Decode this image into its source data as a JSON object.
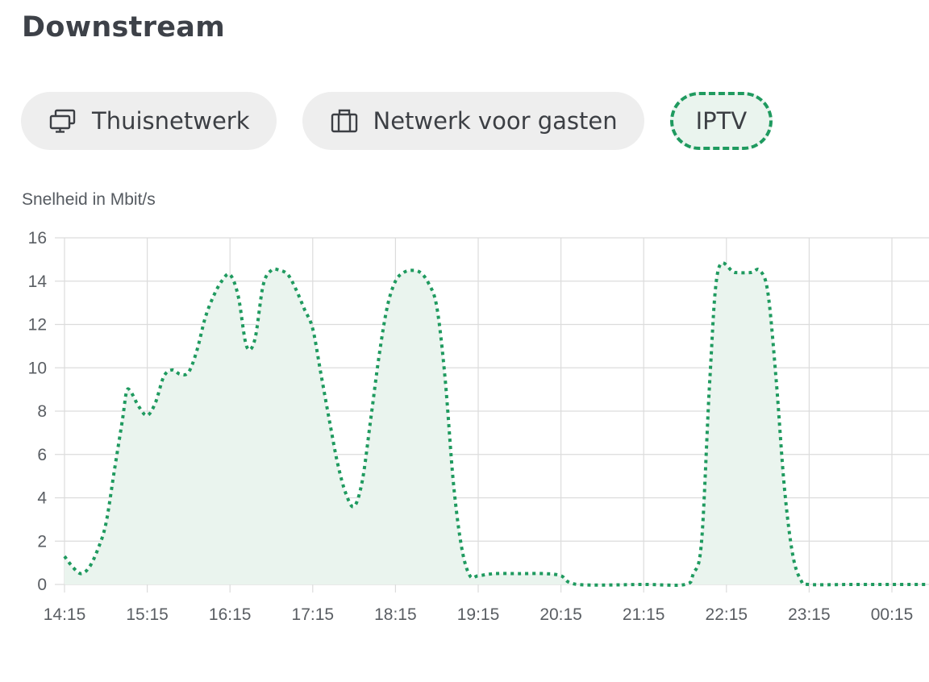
{
  "page": {
    "title": "Downstream"
  },
  "tabs": [
    {
      "label": "Thuisnetwerk",
      "icon": "monitor-icon",
      "active": false
    },
    {
      "label": "Netwerk voor gasten",
      "icon": "suitcase-icon",
      "active": false
    },
    {
      "label": "IPTV",
      "icon": "",
      "active": true
    }
  ],
  "colors": {
    "accent": "#1f9a5f",
    "fill": "#eaf4ee",
    "grid": "#dcdcdc"
  },
  "chart_data": {
    "type": "area",
    "ylabel": "Snelheid in Mbit/s",
    "ylim": [
      0,
      16
    ],
    "yticks": [
      0,
      2,
      4,
      6,
      8,
      10,
      12,
      14,
      16
    ],
    "xticks": [
      "14:15",
      "15:15",
      "16:15",
      "17:15",
      "18:15",
      "19:15",
      "20:15",
      "21:15",
      "22:15",
      "23:15",
      "00:15"
    ],
    "grid": true,
    "line_style": "dotted",
    "x_unit": "minutes after 14:15",
    "series": [
      {
        "points": [
          [
            0,
            1.3
          ],
          [
            6,
            0.8
          ],
          [
            12,
            0.5
          ],
          [
            18,
            0.8
          ],
          [
            24,
            1.6
          ],
          [
            30,
            2.8
          ],
          [
            36,
            5.2
          ],
          [
            42,
            7.6
          ],
          [
            45,
            8.9
          ],
          [
            48,
            8.9
          ],
          [
            54,
            8.2
          ],
          [
            60,
            7.8
          ],
          [
            66,
            8.4
          ],
          [
            72,
            9.6
          ],
          [
            78,
            9.9
          ],
          [
            84,
            9.7
          ],
          [
            90,
            9.8
          ],
          [
            96,
            10.8
          ],
          [
            102,
            12.3
          ],
          [
            108,
            13.3
          ],
          [
            114,
            14.0
          ],
          [
            120,
            14.3
          ],
          [
            126,
            13.3
          ],
          [
            132,
            11.0
          ],
          [
            138,
            11.3
          ],
          [
            144,
            13.8
          ],
          [
            150,
            14.5
          ],
          [
            156,
            14.5
          ],
          [
            162,
            14.3
          ],
          [
            168,
            13.6
          ],
          [
            174,
            12.7
          ],
          [
            180,
            11.8
          ],
          [
            186,
            9.7
          ],
          [
            192,
            7.6
          ],
          [
            198,
            5.6
          ],
          [
            204,
            4.2
          ],
          [
            210,
            3.6
          ],
          [
            216,
            4.8
          ],
          [
            222,
            7.6
          ],
          [
            228,
            10.5
          ],
          [
            234,
            12.8
          ],
          [
            240,
            14.0
          ],
          [
            246,
            14.4
          ],
          [
            252,
            14.5
          ],
          [
            258,
            14.4
          ],
          [
            264,
            13.9
          ],
          [
            270,
            12.8
          ],
          [
            276,
            9.5
          ],
          [
            282,
            4.7
          ],
          [
            288,
            1.7
          ],
          [
            294,
            0.4
          ],
          [
            300,
            0.4
          ],
          [
            312,
            0.5
          ],
          [
            330,
            0.5
          ],
          [
            348,
            0.5
          ],
          [
            360,
            0.4
          ],
          [
            372,
            0.0
          ],
          [
            420,
            0.0
          ],
          [
            450,
            0.0
          ],
          [
            456,
            0.5
          ],
          [
            462,
            2.0
          ],
          [
            468,
            9.5
          ],
          [
            474,
            14.5
          ],
          [
            486,
            14.4
          ],
          [
            498,
            14.4
          ],
          [
            504,
            14.5
          ],
          [
            510,
            13.5
          ],
          [
            516,
            9.5
          ],
          [
            522,
            4.5
          ],
          [
            528,
            1.4
          ],
          [
            534,
            0.2
          ],
          [
            540,
            0.0
          ],
          [
            570,
            0.0
          ],
          [
            600,
            0.0
          ],
          [
            627,
            0.0
          ]
        ]
      }
    ]
  }
}
